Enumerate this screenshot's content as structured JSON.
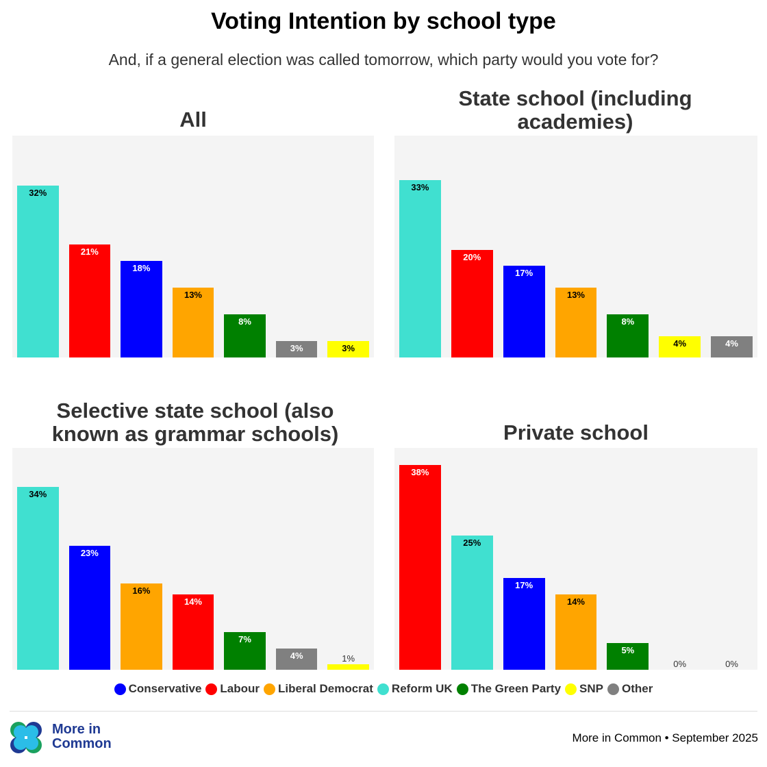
{
  "header": {
    "title": "Voting Intention by school type",
    "subtitle": "And, if a general election was called tomorrow, which party would you vote for?"
  },
  "party_colors": {
    "Conservative": "#0000ff",
    "Labour": "#ff0000",
    "Liberal Democrat": "#ffa500",
    "Reform UK": "#40e0d0",
    "The Green Party": "#008000",
    "SNP": "#ffff00",
    "Other": "#808080"
  },
  "label_colors": {
    "Conservative": "#ffffff",
    "Labour": "#ffffff",
    "Liberal Democrat": "#000000",
    "Reform UK": "#000000",
    "The Green Party": "#ffffff",
    "SNP": "#000000",
    "Other": "#ffffff"
  },
  "legend": {
    "items": [
      {
        "label": "Conservative",
        "color": "#0000ff"
      },
      {
        "label": "Labour",
        "color": "#ff0000"
      },
      {
        "label": "Liberal Democrat",
        "color": "#ffa500"
      },
      {
        "label": "Reform UK",
        "color": "#40e0d0"
      },
      {
        "label": "The Green Party",
        "color": "#008000"
      },
      {
        "label": "SNP",
        "color": "#ffff00"
      },
      {
        "label": "Other",
        "color": "#808080"
      }
    ]
  },
  "footer": {
    "logo_line1": "More in",
    "logo_line2": "Common",
    "credit": "More in Common • September 2025"
  },
  "chart_data": [
    {
      "type": "bar",
      "title": "All",
      "categories": [
        "Reform UK",
        "Labour",
        "Conservative",
        "Liberal Democrat",
        "The Green Party",
        "Other",
        "SNP"
      ],
      "values": [
        32,
        21,
        18,
        13,
        8,
        3,
        3
      ],
      "labels": [
        "32%",
        "21%",
        "18%",
        "13%",
        "8%",
        "3%",
        "3%"
      ],
      "ylim": [
        0,
        40
      ],
      "xlabel": "",
      "ylabel": "",
      "grid": false
    },
    {
      "type": "bar",
      "title": "State school (including academies)",
      "categories": [
        "Reform UK",
        "Labour",
        "Conservative",
        "Liberal Democrat",
        "The Green Party",
        "SNP",
        "Other"
      ],
      "values": [
        33,
        20,
        17,
        13,
        8,
        4,
        4
      ],
      "labels": [
        "33%",
        "20%",
        "17%",
        "13%",
        "8%",
        "4%",
        "4%"
      ],
      "ylim": [
        0,
        40
      ],
      "xlabel": "",
      "ylabel": "",
      "grid": false
    },
    {
      "type": "bar",
      "title": "Selective state school (also known as grammar schools)",
      "categories": [
        "Reform UK",
        "Conservative",
        "Liberal Democrat",
        "Labour",
        "The Green Party",
        "Other",
        "SNP"
      ],
      "values": [
        34,
        23,
        16,
        14,
        7,
        4,
        1
      ],
      "labels": [
        "34%",
        "23%",
        "16%",
        "14%",
        "7%",
        "4%",
        "1%"
      ],
      "ylim": [
        0,
        40
      ],
      "xlabel": "",
      "ylabel": "",
      "grid": false
    },
    {
      "type": "bar",
      "title": "Private school",
      "categories": [
        "Labour",
        "Reform UK",
        "Conservative",
        "Liberal Democrat",
        "The Green Party",
        "SNP",
        "Other"
      ],
      "values": [
        38,
        25,
        17,
        14,
        5,
        0,
        0
      ],
      "labels": [
        "38%",
        "25%",
        "17%",
        "14%",
        "5%",
        "0%",
        "0%"
      ],
      "ylim": [
        0,
        40
      ],
      "xlabel": "",
      "ylabel": "",
      "grid": false
    }
  ]
}
